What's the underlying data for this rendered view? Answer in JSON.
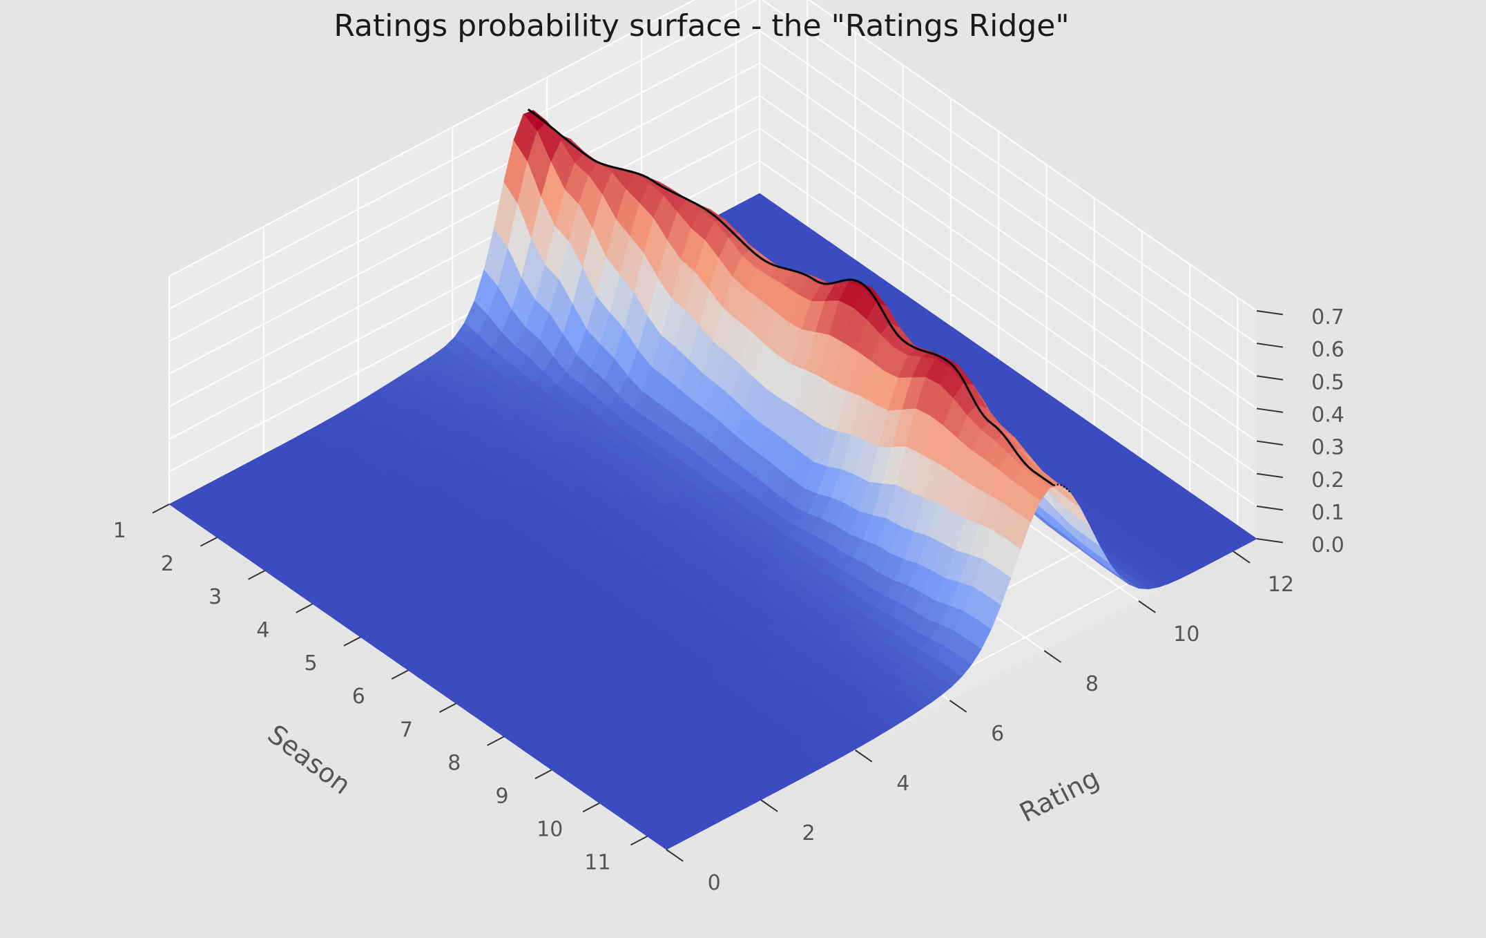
{
  "chart_data": {
    "type": "surface3d",
    "title": "Ratings probability surface - the \"Ratings Ridge\"",
    "xlabel": "Season",
    "ylabel": "Rating",
    "zlabel": "",
    "x_ticks": [
      1,
      2,
      3,
      4,
      5,
      6,
      7,
      8,
      9,
      10,
      11
    ],
    "y_ticks": [
      0,
      2,
      4,
      6,
      8,
      10,
      12
    ],
    "z_ticks": [
      "0.0",
      "0.1",
      "0.2",
      "0.3",
      "0.4",
      "0.5",
      "0.6",
      "0.7"
    ],
    "xlim": [
      1,
      11.4
    ],
    "ylim": [
      0,
      12.5
    ],
    "zlim": [
      0,
      0.7
    ],
    "grid": true,
    "colormap": "coolwarm",
    "colormap_range": [
      0,
      0.62
    ],
    "peak_ridge": {
      "seasons": [
        1,
        2,
        3,
        4,
        5,
        6,
        7,
        8,
        9,
        10,
        11
      ],
      "peak_rating": [
        7.6,
        7.9,
        8.2,
        8.4,
        8.5,
        8.6,
        8.6,
        8.5,
        8.4,
        8.3,
        8.2
      ],
      "peak_probability": [
        0.62,
        0.55,
        0.56,
        0.55,
        0.5,
        0.53,
        0.62,
        0.55,
        0.6,
        0.52,
        0.48
      ],
      "ridge_width": [
        0.6,
        0.65,
        0.65,
        0.65,
        0.7,
        0.7,
        0.65,
        0.7,
        0.7,
        0.75,
        0.8
      ]
    },
    "ridge_line_color": "#000000",
    "background_color": "#e5e5e5",
    "pane_color": "#ebebeb",
    "grid_color": "#ffffff"
  }
}
